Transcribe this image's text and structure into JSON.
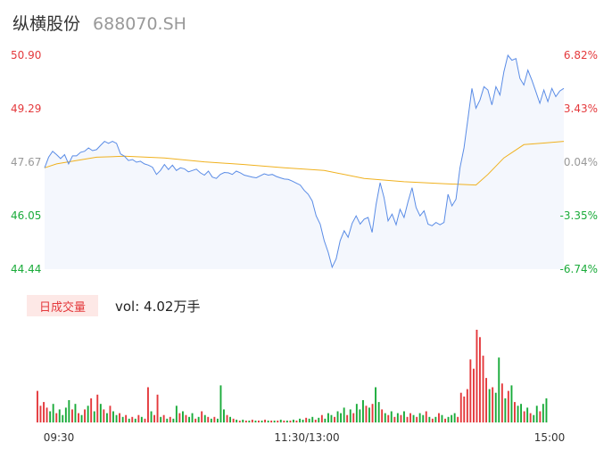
{
  "header": {
    "name": "纵横股份",
    "code": "688070.SH"
  },
  "volume_panel": {
    "tag_label": "日成交量",
    "readout": "vol: 4.02万手"
  },
  "colors": {
    "up": "#e4393c",
    "down": "#1aab3a",
    "price_line": "#5a8ce6",
    "avg_line": "#f0b11e",
    "area_fill": "#f4f7fd",
    "neutral": "#999999"
  },
  "chart_data": [
    {
      "type": "line",
      "name": "intraday-price",
      "y_left_ticks": [
        "50.90",
        "49.29",
        "47.67",
        "46.05",
        "44.44"
      ],
      "y_right_ticks": [
        "6.82%",
        "3.43%",
        "0.04%",
        "-3.35%",
        "-6.74%"
      ],
      "x_ticks": [
        "09:30",
        "11:30/13:00",
        "15:00"
      ],
      "ylim": [
        44.44,
        50.9
      ],
      "prev_close": 47.65,
      "sessions_minutes": 240,
      "price_keypoints": [
        [
          0,
          47.5
        ],
        [
          2,
          47.82
        ],
        [
          4,
          48.0
        ],
        [
          6,
          47.9
        ],
        [
          8,
          47.78
        ],
        [
          10,
          47.9
        ],
        [
          12,
          47.62
        ],
        [
          14,
          47.86
        ],
        [
          16,
          47.86
        ],
        [
          18,
          47.97
        ],
        [
          20,
          48.0
        ],
        [
          22,
          48.1
        ],
        [
          24,
          48.02
        ],
        [
          26,
          48.05
        ],
        [
          28,
          48.18
        ],
        [
          30,
          48.3
        ],
        [
          32,
          48.24
        ],
        [
          34,
          48.3
        ],
        [
          36,
          48.24
        ],
        [
          38,
          47.92
        ],
        [
          40,
          47.85
        ],
        [
          42,
          47.72
        ],
        [
          44,
          47.75
        ],
        [
          46,
          47.67
        ],
        [
          48,
          47.7
        ],
        [
          50,
          47.62
        ],
        [
          52,
          47.58
        ],
        [
          54,
          47.52
        ],
        [
          56,
          47.3
        ],
        [
          58,
          47.42
        ],
        [
          60,
          47.6
        ],
        [
          62,
          47.45
        ],
        [
          64,
          47.58
        ],
        [
          66,
          47.42
        ],
        [
          68,
          47.5
        ],
        [
          70,
          47.47
        ],
        [
          72,
          47.38
        ],
        [
          74,
          47.42
        ],
        [
          76,
          47.46
        ],
        [
          78,
          47.35
        ],
        [
          80,
          47.28
        ],
        [
          82,
          47.4
        ],
        [
          84,
          47.22
        ],
        [
          86,
          47.18
        ],
        [
          88,
          47.3
        ],
        [
          90,
          47.36
        ],
        [
          92,
          47.35
        ],
        [
          94,
          47.3
        ],
        [
          96,
          47.4
        ],
        [
          98,
          47.35
        ],
        [
          100,
          47.28
        ],
        [
          102,
          47.25
        ],
        [
          104,
          47.22
        ],
        [
          106,
          47.2
        ],
        [
          108,
          47.26
        ],
        [
          110,
          47.32
        ],
        [
          112,
          47.28
        ],
        [
          114,
          47.3
        ],
        [
          116,
          47.24
        ],
        [
          118,
          47.2
        ],
        [
          120,
          47.16
        ],
        [
          122,
          47.15
        ],
        [
          124,
          47.1
        ],
        [
          126,
          47.04
        ],
        [
          128,
          46.98
        ],
        [
          130,
          46.82
        ],
        [
          132,
          46.7
        ],
        [
          134,
          46.5
        ],
        [
          136,
          46.05
        ],
        [
          138,
          45.8
        ],
        [
          140,
          45.3
        ],
        [
          142,
          44.95
        ],
        [
          144,
          44.5
        ],
        [
          146,
          44.75
        ],
        [
          148,
          45.3
        ],
        [
          150,
          45.6
        ],
        [
          152,
          45.4
        ],
        [
          154,
          45.82
        ],
        [
          156,
          46.05
        ],
        [
          158,
          45.8
        ],
        [
          160,
          45.95
        ],
        [
          162,
          46.0
        ],
        [
          164,
          45.55
        ],
        [
          166,
          46.4
        ],
        [
          168,
          47.05
        ],
        [
          170,
          46.6
        ],
        [
          172,
          45.9
        ],
        [
          174,
          46.1
        ],
        [
          176,
          45.78
        ],
        [
          178,
          46.25
        ],
        [
          180,
          46.0
        ],
        [
          182,
          46.48
        ],
        [
          184,
          46.9
        ],
        [
          186,
          46.3
        ],
        [
          188,
          46.05
        ],
        [
          190,
          46.2
        ],
        [
          192,
          45.8
        ],
        [
          194,
          45.75
        ],
        [
          196,
          45.85
        ],
        [
          198,
          45.78
        ],
        [
          200,
          45.85
        ],
        [
          202,
          46.7
        ],
        [
          204,
          46.35
        ],
        [
          206,
          46.55
        ],
        [
          208,
          47.5
        ],
        [
          210,
          48.1
        ],
        [
          212,
          49.0
        ],
        [
          214,
          49.9
        ],
        [
          216,
          49.3
        ],
        [
          218,
          49.55
        ],
        [
          220,
          49.95
        ],
        [
          222,
          49.85
        ],
        [
          224,
          49.4
        ],
        [
          226,
          49.95
        ],
        [
          228,
          49.7
        ],
        [
          230,
          50.4
        ],
        [
          232,
          50.9
        ],
        [
          234,
          50.75
        ],
        [
          236,
          50.8
        ],
        [
          238,
          50.2
        ],
        [
          240,
          50.0
        ],
        [
          242,
          50.45
        ],
        [
          244,
          50.15
        ],
        [
          246,
          49.8
        ],
        [
          248,
          49.45
        ],
        [
          250,
          49.85
        ],
        [
          252,
          49.5
        ],
        [
          254,
          49.9
        ],
        [
          256,
          49.65
        ],
        [
          258,
          49.82
        ],
        [
          260,
          49.9
        ]
      ],
      "avg_keypoints": [
        [
          0,
          47.5
        ],
        [
          6,
          47.62
        ],
        [
          16,
          47.72
        ],
        [
          26,
          47.82
        ],
        [
          40,
          47.85
        ],
        [
          60,
          47.8
        ],
        [
          80,
          47.68
        ],
        [
          100,
          47.6
        ],
        [
          120,
          47.5
        ],
        [
          140,
          47.42
        ],
        [
          160,
          47.18
        ],
        [
          180,
          47.08
        ],
        [
          200,
          47.02
        ],
        [
          216,
          46.98
        ],
        [
          222,
          47.3
        ],
        [
          230,
          47.8
        ],
        [
          240,
          48.2
        ],
        [
          250,
          48.25
        ],
        [
          260,
          48.3
        ]
      ]
    },
    {
      "type": "bar",
      "name": "volume",
      "unit": "手",
      "bars": [
        [
          34,
          1
        ],
        [
          18,
          1
        ],
        [
          22,
          1
        ],
        [
          16,
          1
        ],
        [
          12,
          0
        ],
        [
          20,
          0
        ],
        [
          10,
          1
        ],
        [
          14,
          0
        ],
        [
          8,
          0
        ],
        [
          16,
          0
        ],
        [
          24,
          0
        ],
        [
          14,
          1
        ],
        [
          20,
          0
        ],
        [
          10,
          1
        ],
        [
          8,
          0
        ],
        [
          14,
          1
        ],
        [
          18,
          0
        ],
        [
          26,
          1
        ],
        [
          12,
          0
        ],
        [
          30,
          1
        ],
        [
          20,
          0
        ],
        [
          14,
          1
        ],
        [
          10,
          0
        ],
        [
          18,
          1
        ],
        [
          12,
          0
        ],
        [
          8,
          0
        ],
        [
          10,
          1
        ],
        [
          6,
          0
        ],
        [
          8,
          1
        ],
        [
          4,
          0
        ],
        [
          6,
          1
        ],
        [
          4,
          0
        ],
        [
          8,
          1
        ],
        [
          6,
          0
        ],
        [
          4,
          1
        ],
        [
          38,
          1
        ],
        [
          12,
          0
        ],
        [
          8,
          1
        ],
        [
          30,
          1
        ],
        [
          6,
          0
        ],
        [
          8,
          1
        ],
        [
          4,
          0
        ],
        [
          6,
          1
        ],
        [
          4,
          0
        ],
        [
          18,
          0
        ],
        [
          10,
          1
        ],
        [
          12,
          0
        ],
        [
          8,
          1
        ],
        [
          6,
          0
        ],
        [
          10,
          0
        ],
        [
          4,
          1
        ],
        [
          6,
          0
        ],
        [
          12,
          1
        ],
        [
          8,
          0
        ],
        [
          6,
          1
        ],
        [
          4,
          0
        ],
        [
          6,
          1
        ],
        [
          4,
          0
        ],
        [
          40,
          0
        ],
        [
          14,
          0
        ],
        [
          8,
          1
        ],
        [
          6,
          0
        ],
        [
          4,
          1
        ],
        [
          3,
          0
        ],
        [
          2,
          1
        ],
        [
          3,
          0
        ],
        [
          2,
          1
        ],
        [
          2,
          0
        ],
        [
          3,
          1
        ],
        [
          2,
          0
        ],
        [
          2,
          1
        ],
        [
          2,
          0
        ],
        [
          3,
          1
        ],
        [
          2,
          0
        ],
        [
          2,
          1
        ],
        [
          2,
          0
        ],
        [
          2,
          1
        ],
        [
          3,
          0
        ],
        [
          2,
          1
        ],
        [
          2,
          0
        ],
        [
          2,
          1
        ],
        [
          3,
          0
        ],
        [
          2,
          1
        ],
        [
          4,
          0
        ],
        [
          3,
          0
        ],
        [
          5,
          1
        ],
        [
          4,
          0
        ],
        [
          6,
          0
        ],
        [
          3,
          1
        ],
        [
          5,
          0
        ],
        [
          8,
          1
        ],
        [
          4,
          0
        ],
        [
          10,
          0
        ],
        [
          8,
          0
        ],
        [
          6,
          1
        ],
        [
          12,
          0
        ],
        [
          10,
          0
        ],
        [
          16,
          0
        ],
        [
          8,
          1
        ],
        [
          14,
          0
        ],
        [
          10,
          1
        ],
        [
          20,
          0
        ],
        [
          14,
          0
        ],
        [
          24,
          0
        ],
        [
          18,
          1
        ],
        [
          16,
          0
        ],
        [
          20,
          1
        ],
        [
          38,
          0
        ],
        [
          22,
          0
        ],
        [
          14,
          1
        ],
        [
          10,
          0
        ],
        [
          8,
          1
        ],
        [
          12,
          0
        ],
        [
          6,
          1
        ],
        [
          10,
          0
        ],
        [
          8,
          1
        ],
        [
          12,
          0
        ],
        [
          6,
          1
        ],
        [
          10,
          1
        ],
        [
          8,
          0
        ],
        [
          6,
          1
        ],
        [
          10,
          0
        ],
        [
          8,
          0
        ],
        [
          12,
          1
        ],
        [
          6,
          0
        ],
        [
          4,
          1
        ],
        [
          6,
          0
        ],
        [
          10,
          1
        ],
        [
          8,
          0
        ],
        [
          4,
          1
        ],
        [
          6,
          0
        ],
        [
          8,
          0
        ],
        [
          10,
          0
        ],
        [
          6,
          1
        ],
        [
          32,
          1
        ],
        [
          28,
          1
        ],
        [
          36,
          1
        ],
        [
          68,
          1
        ],
        [
          58,
          1
        ],
        [
          100,
          1
        ],
        [
          92,
          1
        ],
        [
          72,
          1
        ],
        [
          48,
          1
        ],
        [
          36,
          0
        ],
        [
          38,
          1
        ],
        [
          32,
          0
        ],
        [
          70,
          0
        ],
        [
          42,
          1
        ],
        [
          26,
          0
        ],
        [
          34,
          1
        ],
        [
          40,
          0
        ],
        [
          22,
          1
        ],
        [
          18,
          0
        ],
        [
          20,
          0
        ],
        [
          12,
          1
        ],
        [
          16,
          0
        ],
        [
          10,
          1
        ],
        [
          8,
          0
        ],
        [
          18,
          0
        ],
        [
          12,
          1
        ],
        [
          20,
          0
        ],
        [
          26,
          0
        ]
      ]
    }
  ]
}
